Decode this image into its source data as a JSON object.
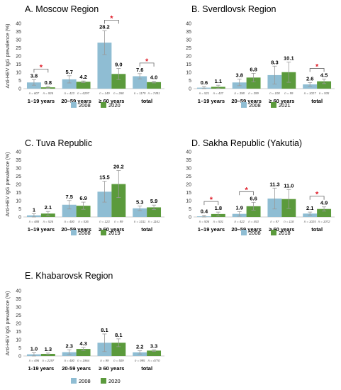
{
  "colors": {
    "series_2008": "#8fbdd3",
    "other_year": "#5b9a3c",
    "error_bar": "#999999",
    "significance": "#e0202c",
    "axis": "#cccccc"
  },
  "chart_data": [
    {
      "type": "bar",
      "title": "A.  Moscow Region",
      "ylabel": "Anti-HEV IgG prevalence (%)",
      "ylim": [
        0,
        40
      ],
      "yticks": [
        "0",
        "5",
        "10",
        "15",
        "20",
        "25",
        "30",
        "35",
        "40"
      ],
      "categories": [
        "1–19 years",
        "20–59 years",
        "≥ 60 years",
        "total"
      ],
      "series": [
        {
          "name": "2008",
          "values": [
            3.8,
            5.7,
            28.2,
            7.6
          ],
          "labels": [
            "3.8",
            "5.7",
            "28.2",
            "7.6"
          ],
          "errors": [
            1.7,
            2.2,
            7.3,
            1.6
          ],
          "n": [
            "n = 607",
            "n = 423",
            "n = 149",
            "n = 1179"
          ]
        },
        {
          "name": "2020",
          "values": [
            0.8,
            4.2,
            9.0,
            4.0
          ],
          "labels": [
            "0.8",
            "4.2",
            "9.0",
            "4.0"
          ],
          "errors": [
            0.6,
            0.5,
            3.4,
            0.5
          ],
          "n": [
            "n = 926",
            "n = 6297",
            "n = 268",
            "n = 7491"
          ]
        }
      ],
      "significant": [
        0,
        2,
        3
      ],
      "significance_mark": "*"
    },
    {
      "type": "bar",
      "title": "B.  Sverdlovsk Region",
      "ylabel": "",
      "ylim": [
        0,
        40
      ],
      "yticks": [
        "0",
        "5",
        "10",
        "15",
        "20",
        "25",
        "30",
        "35",
        "40"
      ],
      "categories": [
        "1–19 years",
        "20–59 years",
        "≥ 60 years",
        "total"
      ],
      "series": [
        {
          "name": "2008",
          "values": [
            0.6,
            3.8,
            8.3,
            2.6
          ],
          "labels": [
            "0.6",
            "3.8",
            "8.3",
            "2.6"
          ],
          "errors": [
            0.7,
            2.0,
            5.5,
            1.1
          ],
          "n": [
            "n = 521",
            "n = 398",
            "n = 108",
            "n = 1027"
          ]
        },
        {
          "name": "2021",
          "values": [
            1.1,
            6.8,
            10.1,
            4.5
          ],
          "labels": [
            "1.1",
            "6.8",
            "10.1",
            "4.5"
          ],
          "errors": [
            1.0,
            2.6,
            6.2,
            1.4
          ],
          "n": [
            "n = 437",
            "n = 399",
            "n = 99",
            "n = 935"
          ]
        }
      ],
      "significant": [
        3
      ],
      "significance_mark": "*"
    },
    {
      "type": "bar",
      "title": "C.  Tuva Republic",
      "ylabel": "Anti-HEV IgG prevalence (%)",
      "ylim": [
        0,
        40
      ],
      "yticks": [
        "0",
        "5",
        "10",
        "15",
        "20",
        "25",
        "30",
        "35",
        "40"
      ],
      "categories": [
        "1–19 years",
        "20–59 years",
        "≥ 60 years",
        "total"
      ],
      "series": [
        {
          "name": "2008",
          "values": [
            1.0,
            7.5,
            15.5,
            5.3
          ],
          "labels": [
            "1",
            "7.5",
            "15.5",
            "5.3"
          ],
          "errors": [
            1.0,
            2.6,
            6.4,
            1.4
          ],
          "n": [
            "n = 488",
            "n = 400",
            "n = 123",
            "n = 1011"
          ]
        },
        {
          "name": "2019",
          "values": [
            2.1,
            6.9,
            20.2,
            5.9
          ],
          "labels": [
            "2.1",
            "6.9",
            "20.2",
            "5.9"
          ],
          "errors": [
            1.3,
            2.2,
            8.3,
            1.4
          ],
          "n": [
            "n = 526",
            "n = 536",
            "n = 99",
            "n = 1161"
          ]
        }
      ],
      "significant": [],
      "significance_mark": "*"
    },
    {
      "type": "bar",
      "title": "D.  Sakha Republic (Yakutia)",
      "ylabel": "",
      "ylim": [
        0,
        40
      ],
      "yticks": [
        "0",
        "5",
        "10",
        "15",
        "20",
        "25",
        "30",
        "35",
        "40"
      ],
      "categories": [
        "1–19 years",
        "20–59 years",
        "≥ 60 years",
        "total"
      ],
      "series": [
        {
          "name": "2008",
          "values": [
            0.4,
            1.9,
            11.3,
            2.1
          ],
          "labels": [
            "0.4",
            "1.9",
            "11.3",
            "2.1"
          ],
          "errors": [
            0.6,
            1.4,
            6.4,
            0.9
          ],
          "n": [
            "n = 506",
            "n = 422",
            "n = 97",
            "n = 1025"
          ]
        },
        {
          "name": "2018",
          "values": [
            1.8,
            6.6,
            11.0,
            4.9
          ],
          "labels": [
            "1.8",
            "6.6",
            "11.0",
            "4.9"
          ],
          "errors": [
            1.2,
            2.4,
            5.8,
            1.3
          ],
          "n": [
            "n = 501",
            "n = 453",
            "n = 118",
            "n = 1072"
          ]
        }
      ],
      "significant": [
        0,
        1,
        3
      ],
      "significance_mark": "*"
    },
    {
      "type": "bar",
      "title": "E.  Khabarovsk Region",
      "ylabel": "Anti-HEV IgG prevalence (%)",
      "ylim": [
        0,
        40
      ],
      "yticks": [
        "0",
        "5",
        "10",
        "15",
        "20",
        "25",
        "30",
        "35",
        "40"
      ],
      "categories": [
        "1-19 years",
        "20-59 years",
        "≥ 60 years",
        "total"
      ],
      "series": [
        {
          "name": "2008",
          "values": [
            1.0,
            2.3,
            8.1,
            2.2
          ],
          "labels": [
            "1.0",
            "2.3",
            "8.1",
            "2.2"
          ],
          "errors": [
            1.0,
            1.5,
            5.4,
            1.0
          ],
          "n": [
            "n = 496",
            "n = 400",
            "n = 99",
            "n = 995"
          ]
        },
        {
          "name": "2020",
          "values": [
            1.3,
            4.3,
            8.1,
            3.3
          ],
          "labels": [
            "1.3",
            "4.3",
            "8.1",
            "3.3"
          ],
          "errors": [
            0.5,
            0.9,
            2.4,
            0.5
          ],
          "n": [
            "n = 2297",
            "n = 1964",
            "n = 509",
            "n = 4770"
          ]
        }
      ],
      "significant": [],
      "significance_mark": "*"
    }
  ]
}
